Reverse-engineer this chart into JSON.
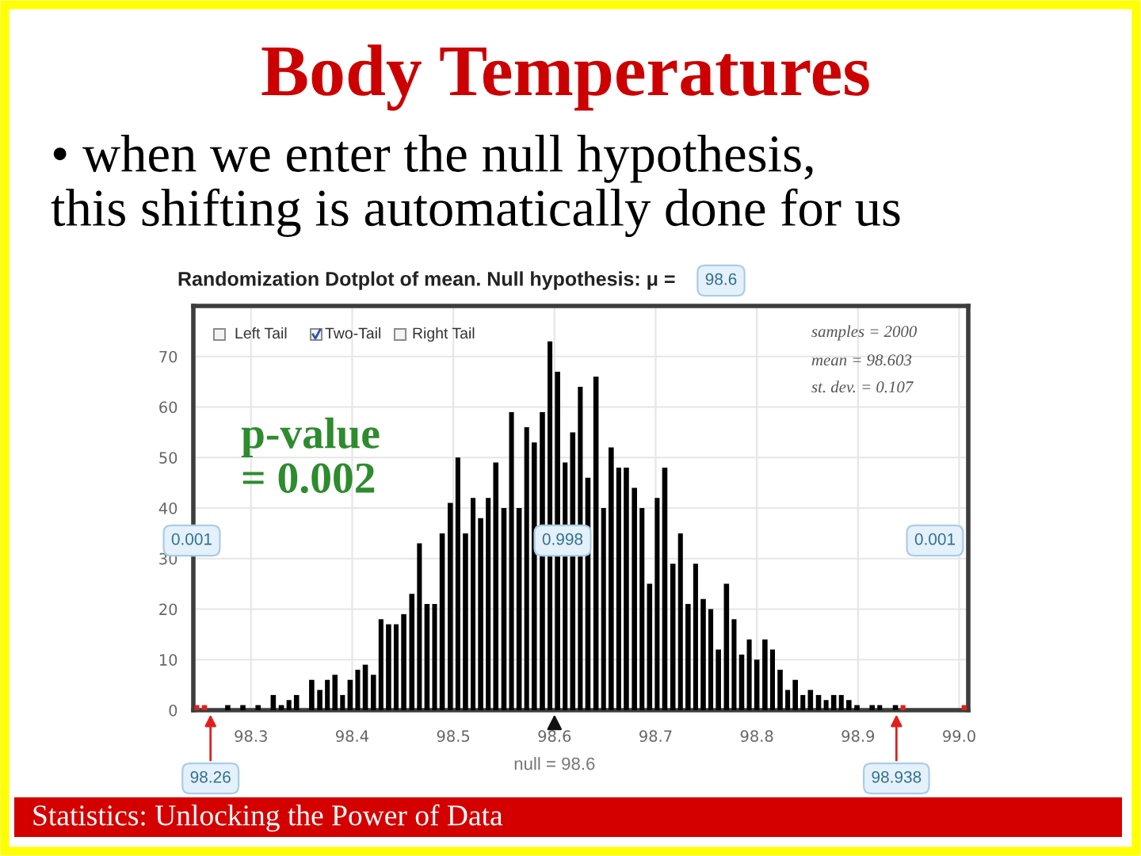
{
  "chart_data": {
    "type": "histogram",
    "title": "Body Temperatures",
    "subtitle": "• when we enter the null hypothesis,\nthis shifting is automatically done for us",
    "bins": [
      98.243,
      98.25,
      98.258,
      98.273,
      98.281,
      98.288,
      98.296,
      98.303,
      98.311,
      98.318,
      98.326,
      98.334,
      98.341,
      98.349,
      98.356,
      98.364,
      98.372,
      98.379,
      98.387,
      98.394,
      98.402,
      98.409,
      98.417,
      98.425,
      98.432,
      98.44,
      98.447,
      98.455,
      98.463,
      98.47,
      98.478,
      98.485,
      98.493,
      98.501,
      98.508,
      98.516,
      98.523,
      98.531,
      98.538,
      98.546,
      98.554,
      98.561,
      98.569,
      98.576,
      98.584,
      98.592,
      98.599,
      98.607,
      98.614,
      98.622,
      98.629,
      98.637,
      98.645,
      98.652,
      98.66,
      98.667,
      98.675,
      98.683,
      98.69,
      98.698,
      98.705,
      98.713,
      98.721,
      98.728,
      98.736,
      98.743,
      98.751,
      98.758,
      98.766,
      98.774,
      98.781,
      98.789,
      98.796,
      98.804,
      98.812,
      98.819,
      98.827,
      98.834,
      98.842,
      98.849,
      98.857,
      98.865,
      98.872,
      98.88,
      98.887,
      98.895,
      98.903,
      98.91,
      98.918,
      98.925,
      98.933,
      98.941,
      98.948,
      99.001,
      99.009
    ],
    "values": [
      1,
      1,
      0,
      1,
      0,
      1,
      0,
      1,
      0,
      3,
      1,
      2,
      3,
      0,
      6,
      4,
      6,
      7,
      3,
      6,
      8,
      9,
      7,
      18,
      17,
      17,
      19,
      23,
      33,
      21,
      21,
      35,
      41,
      50,
      35,
      42,
      38,
      42,
      49,
      40,
      59,
      40,
      56,
      53,
      59,
      73,
      67,
      49,
      55,
      64,
      46,
      66,
      40,
      52,
      48,
      48,
      44,
      40,
      25,
      42,
      48,
      29,
      35,
      21,
      29,
      22,
      20,
      12,
      25,
      18,
      11,
      14,
      10,
      14,
      12,
      8,
      4,
      6,
      3,
      4,
      3,
      2,
      3,
      3,
      2,
      1,
      0,
      1,
      1,
      0,
      1,
      1,
      0,
      1
    ],
    "colors": [
      "#e0201c",
      "#e0201c",
      "#000000",
      "#000000",
      "#000000",
      "#000000",
      "#000000",
      "#000000",
      "#000000",
      "#000000",
      "#000000",
      "#000000",
      "#000000",
      "#000000",
      "#000000",
      "#000000",
      "#000000",
      "#000000",
      "#000000",
      "#000000",
      "#000000",
      "#000000",
      "#000000",
      "#000000",
      "#000000",
      "#000000",
      "#000000",
      "#000000",
      "#000000",
      "#000000",
      "#000000",
      "#000000",
      "#000000",
      "#000000",
      "#000000",
      "#000000",
      "#000000",
      "#000000",
      "#000000",
      "#000000",
      "#000000",
      "#000000",
      "#000000",
      "#000000",
      "#000000",
      "#000000",
      "#000000",
      "#000000",
      "#000000",
      "#000000",
      "#000000",
      "#000000",
      "#000000",
      "#000000",
      "#000000",
      "#000000",
      "#000000",
      "#000000",
      "#000000",
      "#000000",
      "#000000",
      "#000000",
      "#000000",
      "#000000",
      "#000000",
      "#000000",
      "#000000",
      "#000000",
      "#000000",
      "#000000",
      "#000000",
      "#000000",
      "#000000",
      "#000000",
      "#000000",
      "#000000",
      "#000000",
      "#000000",
      "#000000",
      "#000000",
      "#000000",
      "#000000",
      "#000000",
      "#000000",
      "#000000",
      "#000000",
      "#000000",
      "#000000",
      "#000000",
      "#000000",
      "#000000",
      "#e0201c",
      "#000000",
      "#e0201c"
    ],
    "xlim": [
      98.243,
      99.009
    ],
    "ylim": [
      0,
      80
    ],
    "xticks": [
      98.3,
      98.4,
      98.5,
      98.6,
      98.7,
      98.8,
      98.9,
      {
        "value": 99.0,
        "label": "99.0"
      }
    ],
    "yticks": [
      0,
      10,
      20,
      30,
      40,
      50,
      60,
      70
    ],
    "grid": true,
    "annotations": [
      "Randomization Dotplot of mean. Null hypothesis: μ =",
      "98.6",
      "Left Tail",
      "Two-Tail",
      "Right Tail",
      "samples = 2000",
      "mean = 98.603",
      "st. dev. = 0.107",
      "p-value\n= 0.002",
      "0.001",
      "0.998",
      "0.001",
      {
        "text": "98.26",
        "x": 98.26,
        "y": 0
      },
      {
        "text": "98.938",
        "x": 98.938,
        "y": 0
      },
      {
        "text": "null = 98.6",
        "x": 98.6,
        "y": 0
      },
      "Statistics: Unlocking the Power of Data"
    ]
  }
}
